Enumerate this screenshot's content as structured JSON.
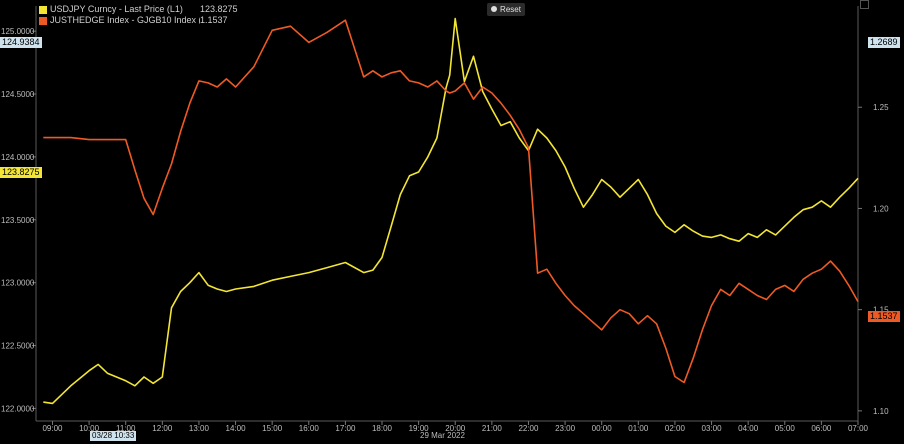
{
  "legend": [
    {
      "name": "USDJPY Curncy - Last Price (L1)",
      "value": "123.8275",
      "color": "#f3e534"
    },
    {
      "name": "JUSTHEDGE Index - GJGB10 Index (R1)",
      "value": "1.1537",
      "color": "#ef5a24"
    }
  ],
  "reset_label": "Reset",
  "flags": {
    "left_top": "124.9384",
    "left_last": "123.8275",
    "right_top": "1.2689",
    "right_last": "1.1537",
    "date_start": "03/28 10:33",
    "date_mid": "29 Mar 2022"
  },
  "chart_data": {
    "type": "line",
    "x": [
      8.75,
      9.0,
      9.5,
      10.0,
      10.25,
      10.5,
      11.0,
      11.25,
      11.5,
      11.75,
      12.0,
      12.25,
      12.5,
      12.75,
      13.0,
      13.25,
      13.5,
      13.75,
      14.0,
      14.5,
      15.0,
      15.5,
      16.0,
      16.5,
      17.0,
      17.5,
      17.75,
      18.0,
      18.25,
      18.5,
      18.75,
      19.0,
      19.25,
      19.5,
      19.75,
      19.85,
      20.0,
      20.25,
      20.5,
      20.75,
      21.0,
      21.25,
      21.5,
      21.75,
      22.0,
      22.25,
      22.5,
      22.75,
      23.0,
      23.25,
      23.5,
      23.75,
      24.0,
      24.25,
      24.5,
      24.75,
      25.0,
      25.25,
      25.5,
      25.75,
      26.0,
      26.25,
      26.5,
      26.75,
      27.0,
      27.25,
      27.5,
      27.75,
      28.0,
      28.25,
      28.5,
      28.75,
      29.0,
      29.25,
      29.5,
      29.75,
      30.0,
      30.25,
      30.5,
      30.75,
      31.0
    ],
    "x_tick_labels": [
      "09:00",
      "10:00",
      "11:00",
      "12:00",
      "13:00",
      "14:00",
      "15:00",
      "16:00",
      "17:00",
      "18:00",
      "19:00",
      "20:00",
      "21:00",
      "22:00",
      "23:00",
      "00:00",
      "01:00",
      "02:00",
      "03:00",
      "04:00",
      "05:00",
      "06:00",
      "07:00"
    ],
    "x_tick_values": [
      9,
      10,
      11,
      12,
      13,
      14,
      15,
      16,
      17,
      18,
      19,
      20,
      21,
      22,
      23,
      24,
      25,
      26,
      27,
      28,
      29,
      30,
      31
    ],
    "xlim": [
      8.55,
      31.0
    ],
    "series": [
      {
        "name": "USDJPY Curncy - Last Price (L1)",
        "axis": "left",
        "color": "#f3e534",
        "values": [
          122.05,
          122.04,
          122.18,
          122.3,
          122.35,
          122.28,
          122.22,
          122.18,
          122.25,
          122.2,
          122.25,
          122.8,
          122.93,
          123.0,
          123.08,
          122.98,
          122.95,
          122.93,
          122.95,
          122.97,
          123.02,
          123.05,
          123.08,
          123.12,
          123.16,
          123.08,
          123.1,
          123.2,
          123.45,
          123.7,
          123.85,
          123.88,
          124.0,
          124.15,
          124.55,
          124.65,
          125.1,
          124.6,
          124.8,
          124.52,
          124.38,
          124.25,
          124.28,
          124.15,
          124.05,
          124.22,
          124.15,
          124.05,
          123.92,
          123.75,
          123.6,
          123.7,
          123.82,
          123.76,
          123.68,
          123.75,
          123.82,
          123.7,
          123.55,
          123.45,
          123.4,
          123.46,
          123.41,
          123.37,
          123.36,
          123.38,
          123.35,
          123.33,
          123.39,
          123.36,
          123.42,
          123.38,
          123.45,
          123.52,
          123.58,
          123.6,
          123.65,
          123.6,
          123.68,
          123.75,
          123.83
        ]
      },
      {
        "name": "JUSTHEDGE Index - GJGB10 Index (R1)",
        "axis": "right",
        "color": "#ef5a24",
        "values": [
          1.235,
          1.235,
          1.235,
          1.234,
          1.234,
          1.234,
          1.234,
          1.219,
          1.205,
          1.197,
          1.21,
          1.222,
          1.238,
          1.252,
          1.263,
          1.262,
          1.26,
          1.264,
          1.26,
          1.27,
          1.288,
          1.29,
          1.282,
          1.287,
          1.293,
          1.265,
          1.268,
          1.265,
          1.267,
          1.268,
          1.263,
          1.262,
          1.26,
          1.263,
          1.258,
          1.257,
          1.258,
          1.262,
          1.254,
          1.26,
          1.257,
          1.252,
          1.246,
          1.239,
          1.23,
          1.168,
          1.17,
          1.163,
          1.157,
          1.152,
          1.148,
          1.144,
          1.14,
          1.146,
          1.15,
          1.148,
          1.143,
          1.147,
          1.143,
          1.131,
          1.117,
          1.114,
          1.126,
          1.14,
          1.152,
          1.16,
          1.157,
          1.163,
          1.16,
          1.157,
          1.155,
          1.16,
          1.162,
          1.159,
          1.165,
          1.168,
          1.17,
          1.174,
          1.169,
          1.162,
          1.154
        ]
      }
    ],
    "y_left": {
      "ylim": [
        121.9,
        125.2
      ],
      "tick_values": [
        122.0,
        122.5,
        123.0,
        123.5,
        124.0,
        124.5,
        125.0
      ],
      "tick_labels": [
        "122.0000",
        "122.5000",
        "123.0000",
        "123.5000",
        "124.0000",
        "124.5000",
        "125.0000"
      ]
    },
    "y_right": {
      "ylim": [
        1.095,
        1.3
      ],
      "tick_values": [
        1.1,
        1.15,
        1.2,
        1.25
      ],
      "tick_labels": [
        "1.10",
        "1.15",
        "1.20",
        "1.25"
      ]
    }
  }
}
